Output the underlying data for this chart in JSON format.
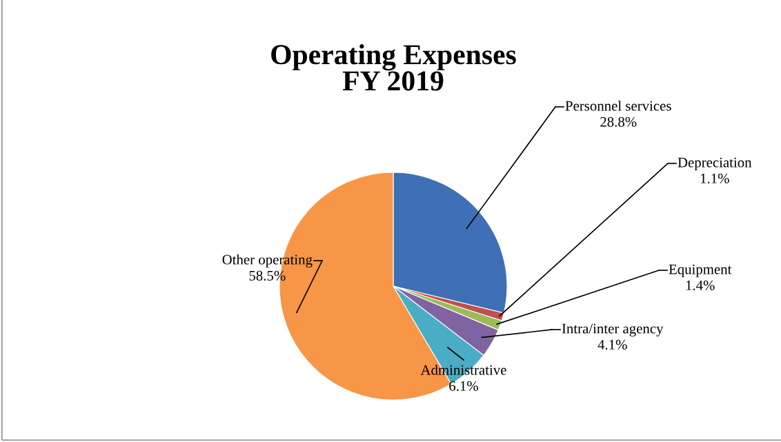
{
  "chart_data": {
    "type": "pie",
    "title": "Operating Expenses\nFY 2019",
    "categories": [
      "Personnel services",
      "Depreciation",
      "Equipment",
      "Intra/inter agency",
      "Administrative",
      "Other operating"
    ],
    "values": [
      28.8,
      1.1,
      1.4,
      4.1,
      6.1,
      58.5
    ],
    "value_labels": [
      "28.8%",
      "1.1%",
      "1.4%",
      "4.1%",
      "6.1%",
      "58.5%"
    ],
    "colors": [
      "#3f6fb5",
      "#c0504d",
      "#9bbb59",
      "#8064a2",
      "#4bacc6",
      "#f79646"
    ],
    "legend": false
  }
}
